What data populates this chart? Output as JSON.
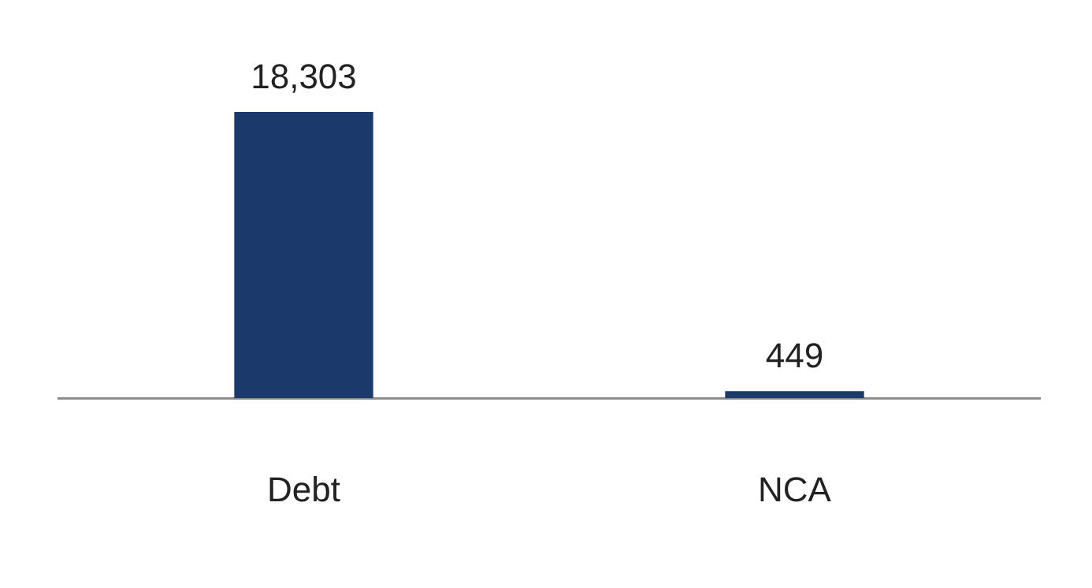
{
  "chart_data": {
    "type": "bar",
    "categories": [
      "Debt",
      "NCA"
    ],
    "values": [
      18303,
      449
    ],
    "color": "#1b3a6b",
    "value_labels": [
      "18,303",
      "449"
    ],
    "grid": false,
    "legend": false
  }
}
